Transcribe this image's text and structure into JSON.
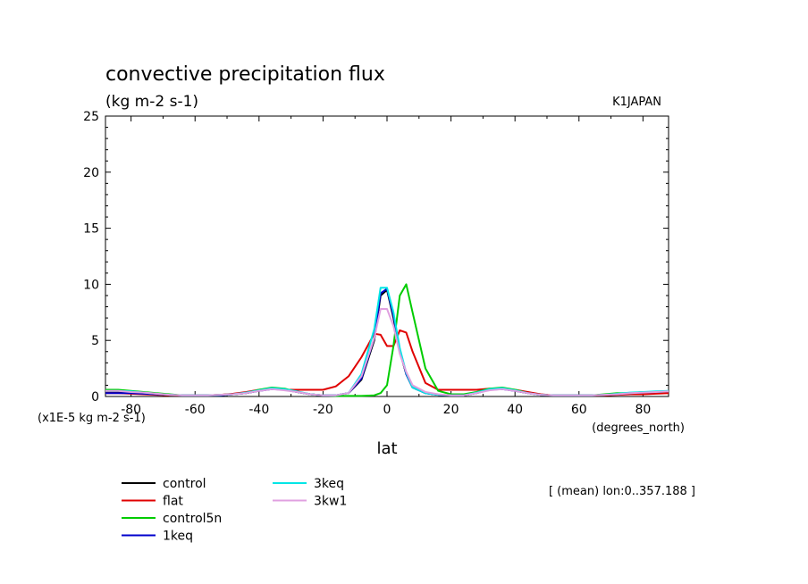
{
  "chart_data": {
    "type": "line",
    "title": "convective precipitation flux",
    "subtitle": "(kg m-2 s-1)",
    "source_label": "K1JAPAN",
    "scale_note": "(x1E-5 kg m-2 s-1)",
    "xlabel": "lat",
    "x_units": "(degrees_north)",
    "mean_note": "[ (mean) lon:0..357.188 ]",
    "xlim": [
      -88,
      88
    ],
    "ylim": [
      0,
      25
    ],
    "x_ticks": [
      -80,
      -60,
      -40,
      -20,
      0,
      20,
      40,
      60,
      80
    ],
    "x_tick_labels": [
      "-80",
      "-60",
      "-40",
      "-20",
      "0",
      "20",
      "40",
      "60",
      "80"
    ],
    "y_ticks": [
      0,
      5,
      10,
      15,
      20,
      25
    ],
    "y_tick_labels": [
      "0",
      "5",
      "10",
      "15",
      "20",
      "25"
    ],
    "x": [
      -88,
      -84,
      -80,
      -76,
      -72,
      -68,
      -64,
      -60,
      -56,
      -52,
      -48,
      -44,
      -40,
      -36,
      -32,
      -28,
      -24,
      -20,
      -16,
      -12,
      -8,
      -4,
      -2,
      0,
      2,
      4,
      6,
      8,
      12,
      16,
      20,
      24,
      28,
      32,
      36,
      40,
      44,
      48,
      52,
      56,
      60,
      64,
      68,
      72,
      76,
      80,
      84,
      88
    ],
    "series": [
      {
        "name": "control",
        "color": "#000000",
        "values": [
          0.4,
          0.4,
          0.4,
          0.3,
          0.2,
          0.15,
          0.1,
          0.1,
          0.1,
          0.15,
          0.2,
          0.3,
          0.5,
          0.7,
          0.6,
          0.4,
          0.2,
          0.1,
          0.1,
          0.3,
          1.5,
          5.0,
          9.0,
          9.5,
          7.0,
          4.0,
          2.0,
          0.8,
          0.3,
          0.15,
          0.1,
          0.1,
          0.3,
          0.6,
          0.7,
          0.5,
          0.3,
          0.15,
          0.1,
          0.1,
          0.1,
          0.1,
          0.15,
          0.2,
          0.3,
          0.3,
          0.35,
          0.4
        ]
      },
      {
        "name": "flat",
        "color": "#e00000",
        "values": [
          0.3,
          0.3,
          0.25,
          0.2,
          0.15,
          0.1,
          0.1,
          0.1,
          0.1,
          0.15,
          0.25,
          0.4,
          0.6,
          0.7,
          0.6,
          0.6,
          0.6,
          0.6,
          0.9,
          1.8,
          3.5,
          5.6,
          5.5,
          4.5,
          4.5,
          5.9,
          5.7,
          4.0,
          1.2,
          0.6,
          0.6,
          0.6,
          0.6,
          0.7,
          0.7,
          0.6,
          0.4,
          0.2,
          0.1,
          0.1,
          0.1,
          0.1,
          0.1,
          0.15,
          0.2,
          0.2,
          0.25,
          0.3
        ]
      },
      {
        "name": "control5n",
        "color": "#00cc00",
        "values": [
          0.6,
          0.6,
          0.5,
          0.4,
          0.3,
          0.2,
          0.1,
          0.1,
          0.1,
          0.1,
          0.2,
          0.3,
          0.6,
          0.8,
          0.7,
          0.4,
          0.2,
          0.1,
          0.05,
          0.05,
          0.05,
          0.1,
          0.3,
          1.0,
          4.5,
          9.0,
          10.0,
          7.5,
          2.5,
          0.5,
          0.2,
          0.2,
          0.4,
          0.7,
          0.8,
          0.6,
          0.3,
          0.15,
          0.1,
          0.1,
          0.1,
          0.1,
          0.2,
          0.3,
          0.3,
          0.4,
          0.4,
          0.45
        ]
      },
      {
        "name": "1keq",
        "color": "#0000cc",
        "values": [
          0.3,
          0.3,
          0.3,
          0.25,
          0.2,
          0.15,
          0.1,
          0.1,
          0.1,
          0.1,
          0.2,
          0.3,
          0.5,
          0.65,
          0.6,
          0.4,
          0.2,
          0.1,
          0.1,
          0.3,
          1.6,
          5.2,
          9.2,
          9.6,
          7.2,
          4.2,
          2.0,
          0.8,
          0.3,
          0.15,
          0.1,
          0.1,
          0.3,
          0.6,
          0.65,
          0.5,
          0.3,
          0.15,
          0.1,
          0.1,
          0.1,
          0.1,
          0.15,
          0.2,
          0.3,
          0.35,
          0.4,
          0.45
        ]
      },
      {
        "name": "3keq",
        "color": "#00e6e6",
        "values": [
          0.5,
          0.5,
          0.45,
          0.35,
          0.25,
          0.15,
          0.1,
          0.1,
          0.1,
          0.15,
          0.2,
          0.35,
          0.55,
          0.75,
          0.65,
          0.45,
          0.2,
          0.1,
          0.1,
          0.3,
          2.0,
          6.0,
          9.7,
          9.7,
          7.5,
          4.3,
          2.1,
          0.8,
          0.3,
          0.15,
          0.1,
          0.1,
          0.35,
          0.65,
          0.75,
          0.55,
          0.3,
          0.15,
          0.1,
          0.1,
          0.1,
          0.1,
          0.15,
          0.25,
          0.35,
          0.4,
          0.45,
          0.5
        ]
      },
      {
        "name": "3kw1",
        "color": "#e0a0e0",
        "values": [
          0.5,
          0.5,
          0.4,
          0.35,
          0.25,
          0.15,
          0.1,
          0.1,
          0.1,
          0.15,
          0.2,
          0.3,
          0.5,
          0.65,
          0.55,
          0.4,
          0.2,
          0.1,
          0.1,
          0.3,
          1.8,
          5.2,
          7.8,
          7.8,
          6.3,
          3.8,
          2.2,
          1.0,
          0.4,
          0.2,
          0.1,
          0.1,
          0.3,
          0.55,
          0.65,
          0.5,
          0.3,
          0.15,
          0.1,
          0.1,
          0.1,
          0.1,
          0.15,
          0.2,
          0.3,
          0.35,
          0.4,
          0.45
        ]
      }
    ]
  }
}
